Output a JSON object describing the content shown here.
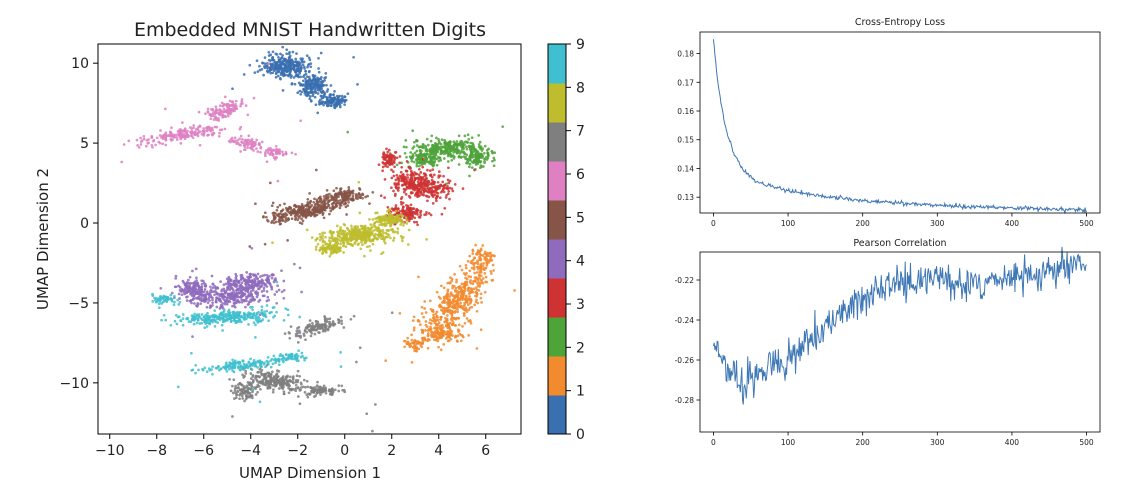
{
  "chart_data": [
    {
      "type": "scatter",
      "title": "Embedded MNIST Handwritten Digits",
      "xlabel": "UMAP Dimension 1",
      "ylabel": "UMAP Dimension 2",
      "xlim": [
        -10.5,
        7.5
      ],
      "ylim": [
        -13.2,
        11.2
      ],
      "xticks": [
        -10,
        -8,
        -6,
        -4,
        -2,
        0,
        2,
        4,
        6
      ],
      "yticks": [
        -10,
        -5,
        0,
        5,
        10
      ],
      "grid": false,
      "colorbar": {
        "ticks": [
          "0",
          "1",
          "2",
          "3",
          "4",
          "5",
          "6",
          "7",
          "8",
          "9"
        ],
        "colors": [
          "#3a6fb0",
          "#f28a2e",
          "#4ea339",
          "#cf3232",
          "#8f6bbd",
          "#865548",
          "#de80c2",
          "#7f7f7f",
          "#bdbd2e",
          "#3fbfcf"
        ]
      },
      "clusters": [
        {
          "digit": "0",
          "n": 620,
          "parts": [
            [
              -2.6,
              9.8,
              0.9,
              0.6,
              0
            ],
            [
              -1.3,
              8.6,
              0.6,
              0.65,
              0
            ],
            [
              -0.5,
              7.6,
              0.5,
              0.4,
              0
            ]
          ]
        },
        {
          "digit": "1",
          "n": 680,
          "parts": [
            [
              4.8,
              -4.8,
              0.7,
              1.7,
              -0.45
            ],
            [
              4.0,
              -6.8,
              0.9,
              0.7,
              -0.2
            ],
            [
              5.8,
              -2.5,
              0.45,
              0.9,
              0
            ],
            [
              3.0,
              -7.6,
              0.5,
              0.3,
              0
            ]
          ]
        },
        {
          "digit": "2",
          "n": 520,
          "parts": [
            [
              4.2,
              4.7,
              1.2,
              0.55,
              0
            ],
            [
              5.6,
              4.1,
              0.5,
              0.7,
              0
            ],
            [
              3.4,
              4.0,
              0.7,
              0.4,
              0
            ]
          ]
        },
        {
          "digit": "3",
          "n": 600,
          "parts": [
            [
              3.2,
              2.4,
              1.1,
              0.75,
              -0.3
            ],
            [
              2.6,
              0.6,
              0.7,
              0.5,
              0
            ],
            [
              1.9,
              4.0,
              0.35,
              0.45,
              0
            ]
          ]
        },
        {
          "digit": "4",
          "n": 640,
          "parts": [
            [
              -5.0,
              -4.6,
              1.6,
              0.55,
              0.05
            ],
            [
              -4.0,
              -3.7,
              1.0,
              0.5,
              0.1
            ],
            [
              -6.5,
              -4.1,
              0.6,
              0.5,
              0
            ]
          ]
        },
        {
          "digit": "5",
          "n": 480,
          "parts": [
            [
              -1.6,
              0.8,
              1.5,
              0.45,
              0.28
            ],
            [
              0.0,
              1.7,
              0.8,
              0.35,
              0.2
            ]
          ]
        },
        {
          "digit": "6",
          "n": 430,
          "parts": [
            [
              -7.0,
              5.5,
              1.6,
              0.35,
              0.24
            ],
            [
              -5.2,
              7.0,
              0.8,
              0.4,
              0.5
            ],
            [
              -4.2,
              5.0,
              0.6,
              0.35,
              -0.3
            ],
            [
              -3.0,
              4.4,
              0.5,
              0.3,
              0
            ]
          ]
        },
        {
          "digit": "7",
          "n": 560,
          "parts": [
            [
              -3.0,
              -9.9,
              1.2,
              0.55,
              -0.2
            ],
            [
              -1.0,
              -10.5,
              0.7,
              0.3,
              0
            ],
            [
              -1.1,
              -6.5,
              1.0,
              0.35,
              0.35
            ],
            [
              -4.2,
              -10.6,
              0.5,
              0.5,
              0
            ]
          ]
        },
        {
          "digit": "8",
          "n": 600,
          "parts": [
            [
              0.6,
              -0.8,
              1.4,
              0.55,
              0.18
            ],
            [
              1.8,
              0.2,
              0.6,
              0.4,
              0
            ],
            [
              -0.6,
              -1.6,
              0.5,
              0.3,
              0
            ]
          ]
        },
        {
          "digit": "9",
          "n": 560,
          "parts": [
            [
              -5.0,
              -5.9,
              2.0,
              0.4,
              0.08
            ],
            [
              -7.6,
              -4.8,
              0.5,
              0.3,
              0
            ],
            [
              -4.3,
              -8.9,
              1.5,
              0.3,
              0.15
            ],
            [
              -2.3,
              -8.4,
              0.6,
              0.25,
              0
            ]
          ]
        }
      ]
    },
    {
      "type": "line",
      "title": "Cross-Entropy Loss",
      "xlim": [
        -18,
        518
      ],
      "ylim": [
        0.1245,
        0.1875
      ],
      "xticks": [
        0,
        100,
        200,
        300,
        400,
        500
      ],
      "yticks": [
        0.13,
        0.14,
        0.15,
        0.16,
        0.17,
        0.18
      ],
      "ytick_labels": [
        "0.13",
        "0.14",
        "0.15",
        "0.16",
        "0.17",
        "0.18"
      ],
      "series": [
        {
          "color": "#3f78b5",
          "x": [
            0,
            5,
            10,
            15,
            20,
            25,
            30,
            40,
            50,
            60,
            70,
            80,
            90,
            100,
            120,
            140,
            160,
            180,
            200,
            225,
            250,
            275,
            300,
            325,
            350,
            375,
            400,
            425,
            450,
            475,
            500
          ],
          "y": [
            0.185,
            0.172,
            0.163,
            0.156,
            0.151,
            0.147,
            0.144,
            0.1395,
            0.137,
            0.1352,
            0.1342,
            0.1335,
            0.1328,
            0.1322,
            0.1313,
            0.1306,
            0.1299,
            0.1294,
            0.1289,
            0.1283,
            0.1279,
            0.1275,
            0.1272,
            0.1269,
            0.1267,
            0.1265,
            0.1263,
            0.1261,
            0.1259,
            0.1257,
            0.1256
          ],
          "noise": 0.00045
        }
      ]
    },
    {
      "type": "line",
      "title": "Pearson Correlation",
      "xlim": [
        -18,
        518
      ],
      "ylim": [
        -0.296,
        -0.206
      ],
      "xticks": [
        0,
        100,
        200,
        300,
        400,
        500
      ],
      "yticks": [
        -0.28,
        -0.26,
        -0.24,
        -0.22
      ],
      "ytick_labels": [
        "-0.28",
        "-0.26",
        "-0.24",
        "-0.22"
      ],
      "series": [
        {
          "color": "#3f78b5",
          "x": [
            0,
            15,
            30,
            40,
            50,
            70,
            90,
            110,
            130,
            150,
            175,
            200,
            225,
            250,
            275,
            300,
            315,
            330,
            350,
            375,
            400,
            425,
            450,
            475,
            500
          ],
          "y": [
            -0.253,
            -0.262,
            -0.268,
            -0.276,
            -0.269,
            -0.265,
            -0.263,
            -0.257,
            -0.249,
            -0.243,
            -0.236,
            -0.229,
            -0.225,
            -0.222,
            -0.221,
            -0.219,
            -0.218,
            -0.222,
            -0.223,
            -0.221,
            -0.219,
            -0.217,
            -0.215,
            -0.213,
            -0.212
          ],
          "noise": 0.0055
        }
      ]
    }
  ]
}
